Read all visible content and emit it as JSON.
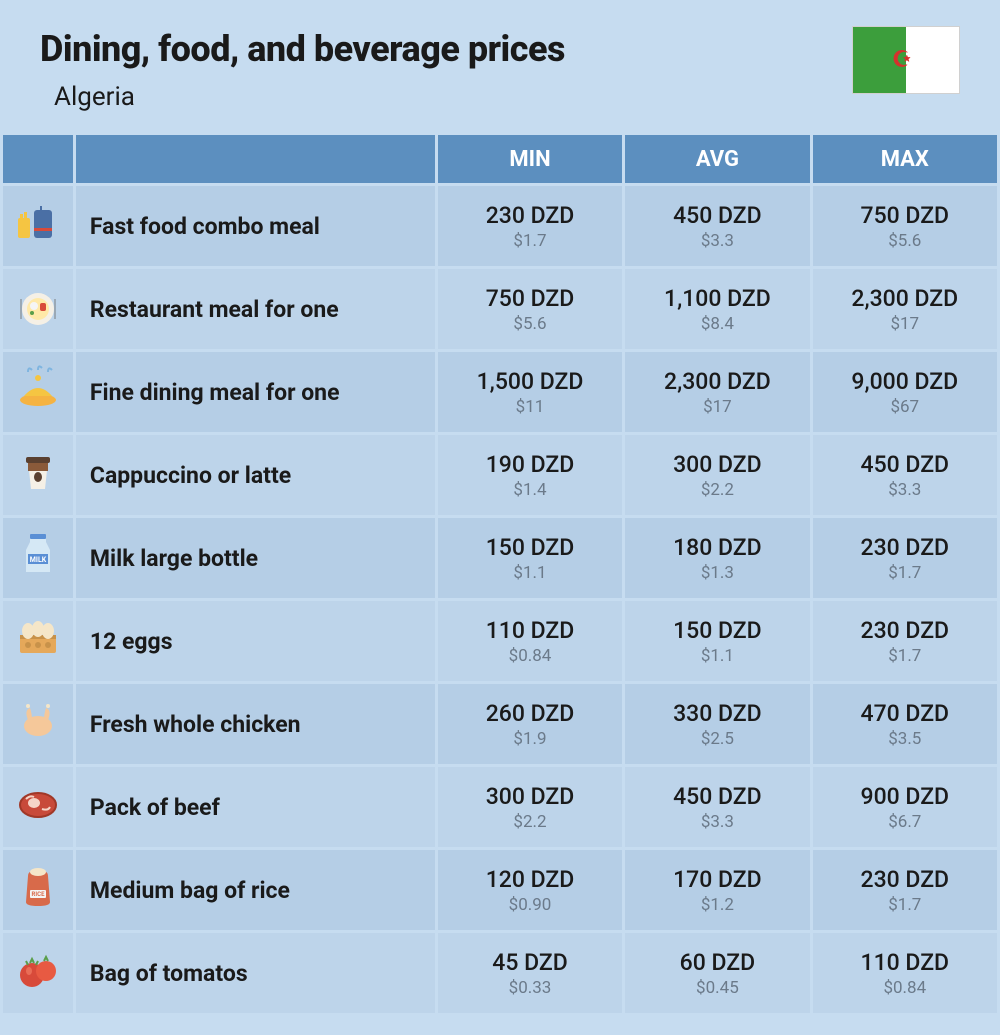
{
  "header": {
    "title": "Dining, food, and beverage prices",
    "subtitle": "Algeria"
  },
  "flag": {
    "left_color": "#3c9e3c",
    "right_color": "#ffffff",
    "emblem_color": "#d6312d"
  },
  "table": {
    "columns": [
      "MIN",
      "AVG",
      "MAX"
    ],
    "header_bg": "#5c8fbf",
    "header_text_color": "#ffffff",
    "row_even_bg": "#b5cee6",
    "row_odd_bg": "#bdd4ea",
    "price_local_color": "#1a1a1a",
    "price_usd_color": "#6b7a8a",
    "rows": [
      {
        "icon": "fast-food",
        "label": "Fast food combo meal",
        "min_local": "230 DZD",
        "min_usd": "$1.7",
        "avg_local": "450 DZD",
        "avg_usd": "$3.3",
        "max_local": "750 DZD",
        "max_usd": "$5.6"
      },
      {
        "icon": "restaurant-meal",
        "label": "Restaurant meal for one",
        "min_local": "750 DZD",
        "min_usd": "$5.6",
        "avg_local": "1,100 DZD",
        "avg_usd": "$8.4",
        "max_local": "2,300 DZD",
        "max_usd": "$17"
      },
      {
        "icon": "fine-dining",
        "label": "Fine dining meal for one",
        "min_local": "1,500 DZD",
        "min_usd": "$11",
        "avg_local": "2,300 DZD",
        "avg_usd": "$17",
        "max_local": "9,000 DZD",
        "max_usd": "$67"
      },
      {
        "icon": "coffee-cup",
        "label": "Cappuccino or latte",
        "min_local": "190 DZD",
        "min_usd": "$1.4",
        "avg_local": "300 DZD",
        "avg_usd": "$2.2",
        "max_local": "450 DZD",
        "max_usd": "$3.3"
      },
      {
        "icon": "milk-bottle",
        "label": "Milk large bottle",
        "min_local": "150 DZD",
        "min_usd": "$1.1",
        "avg_local": "180 DZD",
        "avg_usd": "$1.3",
        "max_local": "230 DZD",
        "max_usd": "$1.7"
      },
      {
        "icon": "eggs",
        "label": "12 eggs",
        "min_local": "110 DZD",
        "min_usd": "$0.84",
        "avg_local": "150 DZD",
        "avg_usd": "$1.1",
        "max_local": "230 DZD",
        "max_usd": "$1.7"
      },
      {
        "icon": "chicken",
        "label": "Fresh whole chicken",
        "min_local": "260 DZD",
        "min_usd": "$1.9",
        "avg_local": "330 DZD",
        "avg_usd": "$2.5",
        "max_local": "470 DZD",
        "max_usd": "$3.5"
      },
      {
        "icon": "beef",
        "label": "Pack of beef",
        "min_local": "300 DZD",
        "min_usd": "$2.2",
        "avg_local": "450 DZD",
        "avg_usd": "$3.3",
        "max_local": "900 DZD",
        "max_usd": "$6.7"
      },
      {
        "icon": "rice-bag",
        "label": "Medium bag of rice",
        "min_local": "120 DZD",
        "min_usd": "$0.90",
        "avg_local": "170 DZD",
        "avg_usd": "$1.2",
        "max_local": "230 DZD",
        "max_usd": "$1.7"
      },
      {
        "icon": "tomatoes",
        "label": "Bag of tomatos",
        "min_local": "45 DZD",
        "min_usd": "$0.33",
        "avg_local": "60 DZD",
        "avg_usd": "$0.45",
        "max_local": "110 DZD",
        "max_usd": "$0.84"
      }
    ]
  }
}
